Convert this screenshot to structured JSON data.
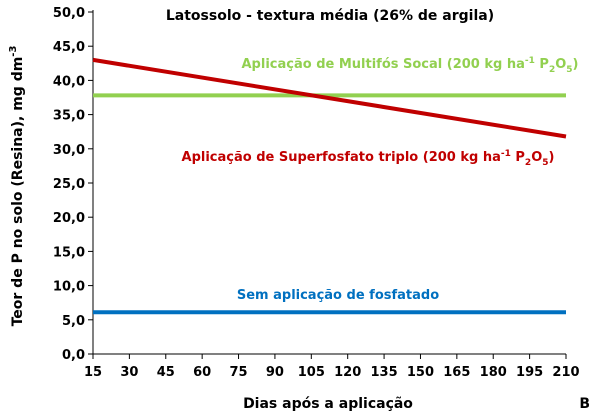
{
  "chart_data": {
    "type": "line",
    "title": "Latossolo - textura média (26% de argila)",
    "xlabel": "Dias após a aplicação",
    "ylabel": "Teor de P no solo (Resina), mg dm",
    "ylabel_superscript": "-3",
    "panel_label": "B",
    "x": [
      15,
      30,
      45,
      60,
      75,
      90,
      105,
      120,
      135,
      150,
      165,
      180,
      195,
      210
    ],
    "x_tick_labels": [
      "15",
      "30",
      "45",
      "60",
      "75",
      "90",
      "105",
      "120",
      "135",
      "150",
      "165",
      "180",
      "195",
      "210"
    ],
    "y_tick_labels": [
      "0,0",
      "5,0",
      "10,0",
      "15,0",
      "20,0",
      "25,0",
      "30,0",
      "35,0",
      "40,0",
      "45,0",
      "50,0"
    ],
    "ylim": [
      0,
      50
    ],
    "xlim": [
      15,
      210
    ],
    "grid": false,
    "series": [
      {
        "color": "#92d050",
        "x": [
          15,
          210
        ],
        "values": [
          37.8,
          37.8
        ],
        "annotation": {
          "prefix": "Aplicação de Multifós Socal (200 kg ha",
          "sup": "-1",
          "mid": " P",
          "sub1": "2",
          "o": "O",
          "sub2": "5",
          "suffix": ")"
        }
      },
      {
        "color": "#c00000",
        "x": [
          15,
          210
        ],
        "values": [
          43.0,
          31.8
        ],
        "annotation": {
          "prefix": "Aplicação de Superfosfato triplo (200 kg ha",
          "sup": "-1",
          "mid": "  P",
          "sub1": "2",
          "o": "O",
          "sub2": "5",
          "suffix": ")"
        }
      },
      {
        "color": "#0070c0",
        "x": [
          15,
          210
        ],
        "values": [
          6.1,
          6.1
        ],
        "annotation": {
          "prefix": "Sem aplicação de fosfatado",
          "sup": "",
          "mid": "",
          "sub1": "",
          "o": "",
          "sub2": "",
          "suffix": ""
        }
      }
    ]
  }
}
